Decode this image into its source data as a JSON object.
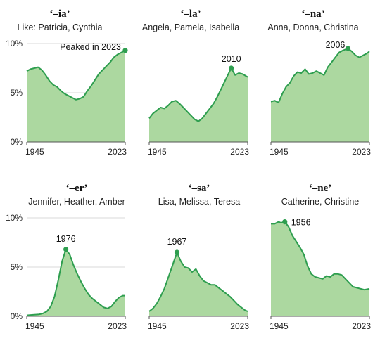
{
  "chart_data": [
    {
      "type": "area",
      "title": "‘–ia’",
      "subtitle": "Like: Patricia, Cynthia",
      "x": [
        1945,
        1948,
        1951,
        1954,
        1957,
        1960,
        1963,
        1966,
        1969,
        1972,
        1975,
        1978,
        1981,
        1984,
        1987,
        1990,
        1993,
        1996,
        1999,
        2002,
        2005,
        2008,
        2011,
        2014,
        2017,
        2020,
        2023
      ],
      "values": [
        7.2,
        7.4,
        7.5,
        7.6,
        7.3,
        6.8,
        6.2,
        5.8,
        5.6,
        5.2,
        4.9,
        4.7,
        4.5,
        4.3,
        4.4,
        4.6,
        5.2,
        5.7,
        6.3,
        6.9,
        7.3,
        7.7,
        8.1,
        8.6,
        8.9,
        9.1,
        9.3
      ],
      "xticks": [
        "1945",
        "2023"
      ],
      "yticks": [
        "0%",
        "5%",
        "10%"
      ],
      "ylim": [
        0,
        10
      ],
      "annotation": {
        "text": "Peaked in 2023",
        "x": 2023,
        "y": 9.3
      }
    },
    {
      "type": "area",
      "title": "‘–la’",
      "subtitle": "Angela, Pamela, Isabella",
      "x": [
        1945,
        1948,
        1951,
        1954,
        1957,
        1960,
        1963,
        1966,
        1969,
        1972,
        1975,
        1978,
        1981,
        1984,
        1987,
        1990,
        1993,
        1996,
        1999,
        2002,
        2005,
        2008,
        2010,
        2013,
        2016,
        2019,
        2023
      ],
      "values": [
        2.4,
        2.9,
        3.2,
        3.5,
        3.4,
        3.7,
        4.1,
        4.2,
        3.9,
        3.5,
        3.1,
        2.7,
        2.3,
        2.1,
        2.4,
        2.9,
        3.4,
        3.9,
        4.6,
        5.4,
        6.2,
        7.0,
        7.5,
        6.8,
        7.0,
        6.9,
        6.6
      ],
      "xticks": [
        "1945",
        "2023"
      ],
      "ylim": [
        0,
        10
      ],
      "annotation": {
        "text": "2010",
        "x": 2010,
        "y": 7.5
      }
    },
    {
      "type": "area",
      "title": "‘–na’",
      "subtitle": "Anna, Donna, Christina",
      "x": [
        1945,
        1948,
        1951,
        1954,
        1957,
        1960,
        1963,
        1966,
        1969,
        1972,
        1975,
        1978,
        1981,
        1984,
        1987,
        1990,
        1993,
        1996,
        1999,
        2002,
        2006,
        2009,
        2012,
        2015,
        2018,
        2021,
        2023
      ],
      "values": [
        4.1,
        4.2,
        4.0,
        4.9,
        5.6,
        6.0,
        6.7,
        7.1,
        7.0,
        7.4,
        6.9,
        7.0,
        7.2,
        7.0,
        6.8,
        7.6,
        8.1,
        8.6,
        9.1,
        9.3,
        9.5,
        9.2,
        8.8,
        8.6,
        8.8,
        9.0,
        9.2
      ],
      "xticks": [
        "1945",
        "2023"
      ],
      "ylim": [
        0,
        10
      ],
      "annotation": {
        "text": "2006",
        "x": 2006,
        "y": 9.5
      }
    },
    {
      "type": "area",
      "title": "‘–er’",
      "subtitle": "Jennifer, Heather, Amber",
      "x": [
        1945,
        1950,
        1955,
        1958,
        1961,
        1964,
        1967,
        1970,
        1973,
        1976,
        1979,
        1982,
        1985,
        1988,
        1991,
        1994,
        1997,
        2000,
        2003,
        2006,
        2009,
        2012,
        2015,
        2018,
        2021,
        2023
      ],
      "values": [
        0.1,
        0.15,
        0.2,
        0.3,
        0.5,
        1.0,
        2.0,
        3.7,
        5.6,
        6.8,
        6.3,
        5.2,
        4.3,
        3.5,
        2.8,
        2.2,
        1.8,
        1.5,
        1.2,
        0.9,
        0.8,
        1.0,
        1.5,
        1.9,
        2.1,
        2.1
      ],
      "xticks": [
        "1945",
        "2023"
      ],
      "yticks": [
        "0%",
        "5%",
        "10%"
      ],
      "ylim": [
        0,
        10
      ],
      "annotation": {
        "text": "1976",
        "x": 1976,
        "y": 6.8
      }
    },
    {
      "type": "area",
      "title": "‘–sa’",
      "subtitle": "Lisa, Melissa, Teresa",
      "x": [
        1945,
        1948,
        1951,
        1954,
        1957,
        1960,
        1963,
        1967,
        1970,
        1973,
        1976,
        1979,
        1982,
        1985,
        1988,
        1991,
        1994,
        1997,
        2000,
        2003,
        2006,
        2009,
        2012,
        2015,
        2018,
        2021,
        2023
      ],
      "values": [
        0.5,
        0.8,
        1.3,
        2.0,
        2.8,
        3.9,
        5.0,
        6.5,
        5.6,
        5.0,
        4.9,
        4.5,
        4.8,
        4.1,
        3.6,
        3.4,
        3.2,
        3.2,
        2.9,
        2.6,
        2.3,
        2.0,
        1.6,
        1.2,
        0.9,
        0.6,
        0.5
      ],
      "xticks": [
        "1945",
        "2023"
      ],
      "ylim": [
        0,
        10
      ],
      "annotation": {
        "text": "1967",
        "x": 1967,
        "y": 6.5
      }
    },
    {
      "type": "area",
      "title": "‘–ne’",
      "subtitle": "Catherine, Christine",
      "x": [
        1945,
        1948,
        1951,
        1953,
        1956,
        1959,
        1962,
        1965,
        1968,
        1971,
        1974,
        1977,
        1980,
        1983,
        1986,
        1989,
        1992,
        1995,
        1998,
        2001,
        2004,
        2007,
        2010,
        2013,
        2016,
        2019,
        2023
      ],
      "values": [
        9.4,
        9.4,
        9.6,
        9.5,
        9.6,
        9.1,
        8.2,
        7.6,
        7.0,
        6.3,
        5.1,
        4.3,
        4.0,
        3.9,
        3.8,
        4.1,
        4.0,
        4.3,
        4.3,
        4.2,
        3.8,
        3.4,
        3.0,
        2.9,
        2.8,
        2.7,
        2.8
      ],
      "xticks": [
        "1945",
        "2023"
      ],
      "ylim": [
        0,
        10
      ],
      "annotation": {
        "text": "1956",
        "x": 1956,
        "y": 9.6
      }
    }
  ],
  "colors": {
    "line": "#2e9e4f",
    "fill": "#acd8a0",
    "axis": "#555555"
  }
}
